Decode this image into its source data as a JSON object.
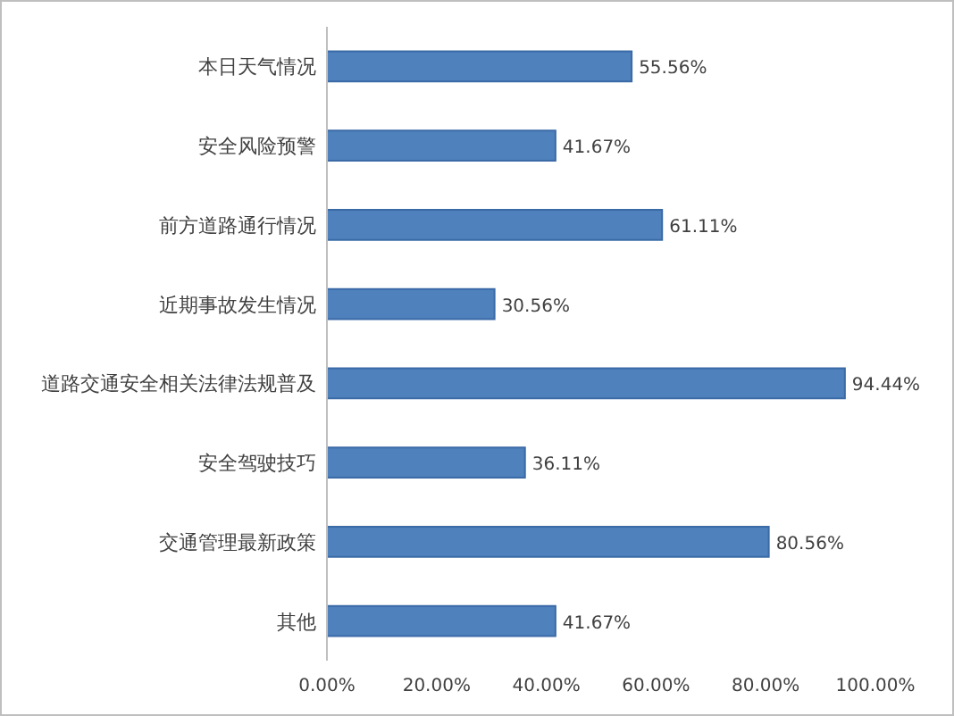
{
  "chart_data": {
    "type": "bar",
    "orientation": "horizontal",
    "categories": [
      "本日天气情况",
      "安全风险预警",
      "前方道路通行情况",
      "近期事故发生情况",
      "道路交通安全相关法律法规普及",
      "安全驾驶技巧",
      "交通管理最新政策",
      "其他"
    ],
    "values": [
      55.56,
      41.67,
      61.11,
      30.56,
      94.44,
      36.11,
      80.56,
      41.67
    ],
    "value_labels": [
      "55.56%",
      "41.67%",
      "61.11%",
      "30.56%",
      "94.44%",
      "36.11%",
      "80.56%",
      "41.67%"
    ],
    "color": "#4f81bd",
    "xlim": [
      0,
      100
    ],
    "xticks": [
      {
        "value": 0,
        "label": "0.00%"
      },
      {
        "value": 20,
        "label": "20.00%"
      },
      {
        "value": 40,
        "label": "40.00%"
      },
      {
        "value": 60,
        "label": "60.00%"
      },
      {
        "value": 80,
        "label": "80.00%"
      },
      {
        "value": 100,
        "label": "100.00%"
      }
    ],
    "grid": false
  }
}
